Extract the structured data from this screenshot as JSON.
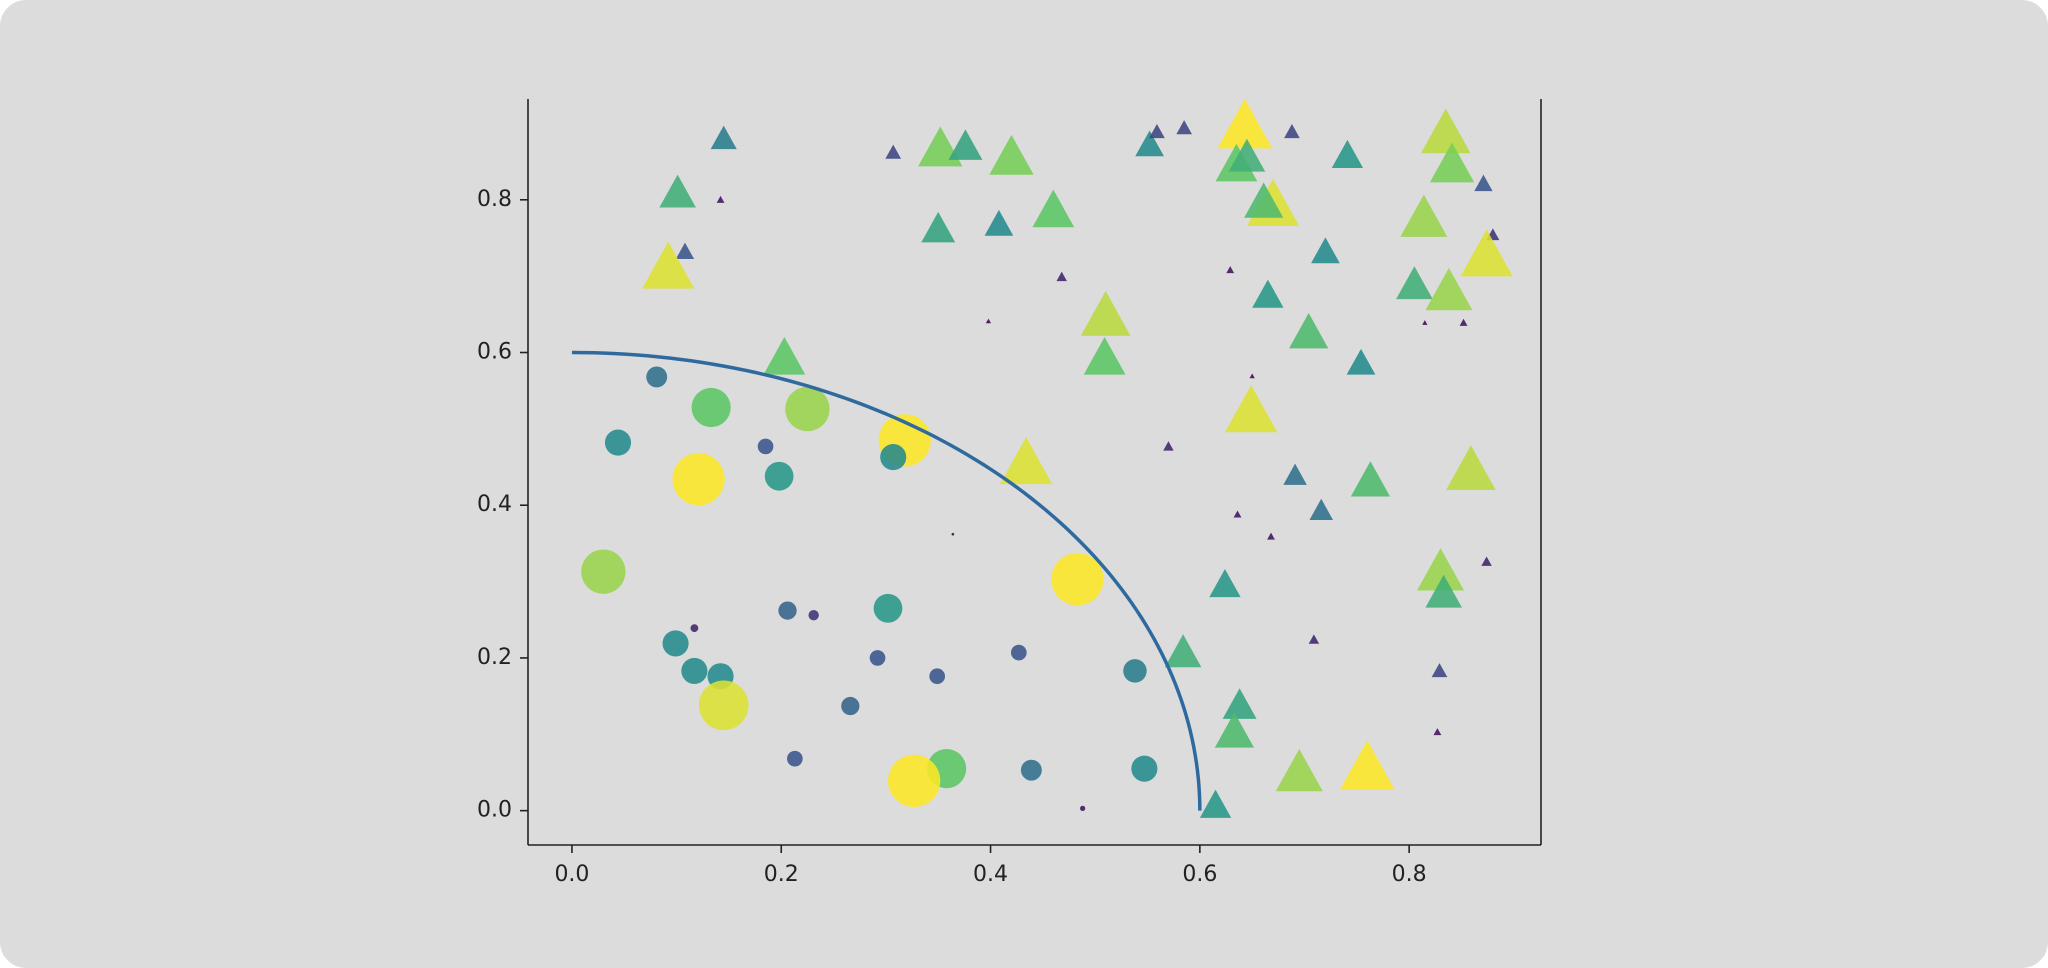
{
  "chart_data": {
    "type": "scatter",
    "xlim": [
      -0.042,
      0.926
    ],
    "ylim": [
      -0.045,
      0.932
    ],
    "xticks": [
      {
        "value": 0,
        "label": "0.0"
      },
      0.2,
      0.4,
      0.6,
      0.8
    ],
    "yticks": [
      {
        "value": 0,
        "label": "0.0"
      },
      0.2,
      0.4,
      0.6,
      0.8
    ],
    "colormap": "viridis",
    "arc": {
      "radius": 0.6,
      "color": "#2f6a9f"
    },
    "series": [
      {
        "marker": "circle",
        "x": [
          0.081,
          0.044,
          0.133,
          0.121,
          0.198,
          0.225,
          0.185,
          0.318,
          0.307,
          0.03,
          0.099,
          0.117,
          0.142,
          0.145,
          0.117,
          0.206,
          0.231,
          0.302,
          0.292,
          0.266,
          0.349,
          0.427,
          0.483,
          0.538,
          0.213,
          0.358,
          0.327,
          0.439,
          0.547,
          0.488,
          0.364
        ],
        "y": [
          0.568,
          0.482,
          0.528,
          0.434,
          0.438,
          0.526,
          0.477,
          0.485,
          0.463,
          0.313,
          0.219,
          0.183,
          0.176,
          0.138,
          0.239,
          0.262,
          0.256,
          0.265,
          0.2,
          0.137,
          0.176,
          0.207,
          0.303,
          0.183,
          0.068,
          0.055,
          0.039,
          0.053,
          0.055,
          0.003,
          0.362
        ],
        "sizes": [
          64,
          100,
          225,
          400,
          121,
          289,
          36,
          400,
          100,
          289,
          100,
          100,
          100,
          361,
          9,
          49,
          16,
          121,
          36,
          49,
          36,
          36,
          400,
          81,
          36,
          225,
          400,
          64,
          100,
          4,
          1
        ]
      },
      {
        "marker": "triangle",
        "x": [
          0.145,
          0.101,
          0.108,
          0.142,
          0.092,
          0.307,
          0.352,
          0.376,
          0.42,
          0.35,
          0.408,
          0.46,
          0.468,
          0.398,
          0.51,
          0.509,
          0.203,
          0.434,
          0.552,
          0.559,
          0.585,
          0.643,
          0.635,
          0.645,
          0.67,
          0.661,
          0.688,
          0.741,
          0.72,
          0.629,
          0.665,
          0.704,
          0.754,
          0.65,
          0.649,
          0.57,
          0.691,
          0.716,
          0.763,
          0.636,
          0.668,
          0.624,
          0.584,
          0.638,
          0.633,
          0.615,
          0.695,
          0.76,
          0.709,
          0.835,
          0.841,
          0.871,
          0.88,
          0.814,
          0.874,
          0.805,
          0.838,
          0.815,
          0.852,
          0.859,
          0.83,
          0.833,
          0.874,
          0.829,
          0.827
        ],
        "y": [
          0.88,
          0.809,
          0.732,
          0.8,
          0.711,
          0.862,
          0.867,
          0.87,
          0.856,
          0.762,
          0.768,
          0.786,
          0.699,
          0.641,
          0.648,
          0.593,
          0.593,
          0.455,
          0.872,
          0.889,
          0.894,
          0.896,
          0.846,
          0.856,
          0.793,
          0.797,
          0.889,
          0.858,
          0.732,
          0.708,
          0.675,
          0.626,
          0.586,
          0.569,
          0.523,
          0.477,
          0.439,
          0.393,
          0.432,
          0.388,
          0.359,
          0.296,
          0.207,
          0.138,
          0.103,
          0.007,
          0.05,
          0.056,
          0.224,
          0.887,
          0.846,
          0.821,
          0.754,
          0.776,
          0.727,
          0.689,
          0.68,
          0.639,
          0.639,
          0.446,
          0.313,
          0.285,
          0.326,
          0.183,
          0.103
        ],
        "sizes": [
          100,
          196,
          49,
          9,
          400,
          36,
          289,
          169,
          289,
          169,
          121,
          256,
          16,
          4,
          361,
          256,
          256,
          400,
          121,
          36,
          36,
          441,
          256,
          196,
          400,
          225,
          36,
          144,
          121,
          9,
          144,
          225,
          121,
          4,
          400,
          16,
          81,
          81,
          225,
          9,
          9,
          144,
          196,
          169,
          225,
          144,
          324,
          441,
          16,
          361,
          289,
          49,
          25,
          324,
          400,
          196,
          324,
          4,
          9,
          361,
          324,
          196,
          16,
          36,
          9
        ]
      }
    ]
  }
}
